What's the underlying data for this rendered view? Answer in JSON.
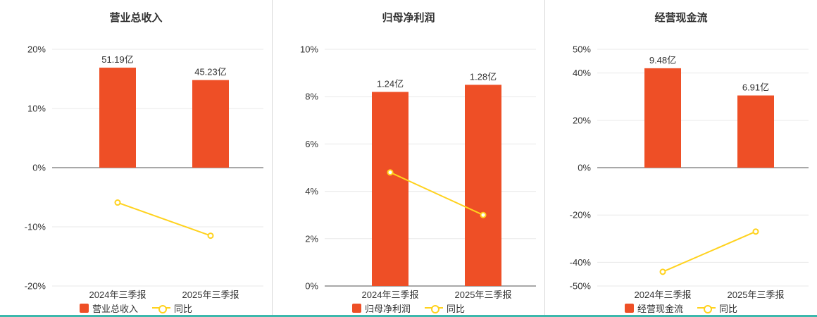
{
  "colors": {
    "bar": "#ee4f26",
    "line": "#ffd21e",
    "grid": "#e8e8e8",
    "axis": "#8c8c8c",
    "text": "#333333",
    "divider": "#d9d9d9",
    "bottom_bar": "#3cb8ac"
  },
  "chart_data": [
    {
      "type": "bar+line",
      "title": "营业总收入",
      "categories": [
        "2024年三季报",
        "2025年三季报"
      ],
      "bar_series": {
        "name": "营业总收入",
        "values_yi": [
          51.19,
          45.23
        ],
        "labels": [
          "51.19亿",
          "45.23亿"
        ],
        "plotted_height_pct": [
          16.9,
          14.8
        ]
      },
      "line_series": {
        "name": "同比",
        "values_pct": [
          -5.9,
          -11.5
        ]
      },
      "ylim": [
        -20,
        20
      ],
      "yticks": [
        {
          "v": -20,
          "label": "-20%"
        },
        {
          "v": -10,
          "label": "-10%"
        },
        {
          "v": 0,
          "label": "0%"
        },
        {
          "v": 10,
          "label": "10%"
        },
        {
          "v": 20,
          "label": "20%"
        }
      ],
      "grid": true,
      "legend_position": "bottom"
    },
    {
      "type": "bar+line",
      "title": "归母净利润",
      "categories": [
        "2024年三季报",
        "2025年三季报"
      ],
      "bar_series": {
        "name": "归母净利润",
        "values_yi": [
          1.24,
          1.28
        ],
        "labels": [
          "1.24亿",
          "1.28亿"
        ],
        "plotted_height_pct": [
          8.2,
          8.5
        ]
      },
      "line_series": {
        "name": "同比",
        "values_pct": [
          4.8,
          3.0
        ]
      },
      "ylim": [
        0,
        10
      ],
      "yticks": [
        {
          "v": 0,
          "label": "0%"
        },
        {
          "v": 2,
          "label": "2%"
        },
        {
          "v": 4,
          "label": "4%"
        },
        {
          "v": 6,
          "label": "6%"
        },
        {
          "v": 8,
          "label": "8%"
        },
        {
          "v": 10,
          "label": "10%"
        }
      ],
      "grid": true,
      "legend_position": "bottom"
    },
    {
      "type": "bar+line",
      "title": "经营现金流",
      "categories": [
        "2024年三季报",
        "2025年三季报"
      ],
      "bar_series": {
        "name": "经营现金流",
        "values_yi": [
          9.48,
          6.91
        ],
        "labels": [
          "9.48亿",
          "6.91亿"
        ],
        "plotted_height_pct": [
          42,
          30.5
        ]
      },
      "line_series": {
        "name": "同比",
        "values_pct": [
          -44,
          -27
        ]
      },
      "ylim": [
        -50,
        50
      ],
      "yticks": [
        {
          "v": -50,
          "label": "-50%"
        },
        {
          "v": -40,
          "label": "-40%"
        },
        {
          "v": -20,
          "label": "-20%"
        },
        {
          "v": 0,
          "label": "0%"
        },
        {
          "v": 20,
          "label": "20%"
        },
        {
          "v": 40,
          "label": "40%"
        },
        {
          "v": 50,
          "label": "50%"
        }
      ],
      "grid": true,
      "legend_position": "bottom"
    }
  ]
}
